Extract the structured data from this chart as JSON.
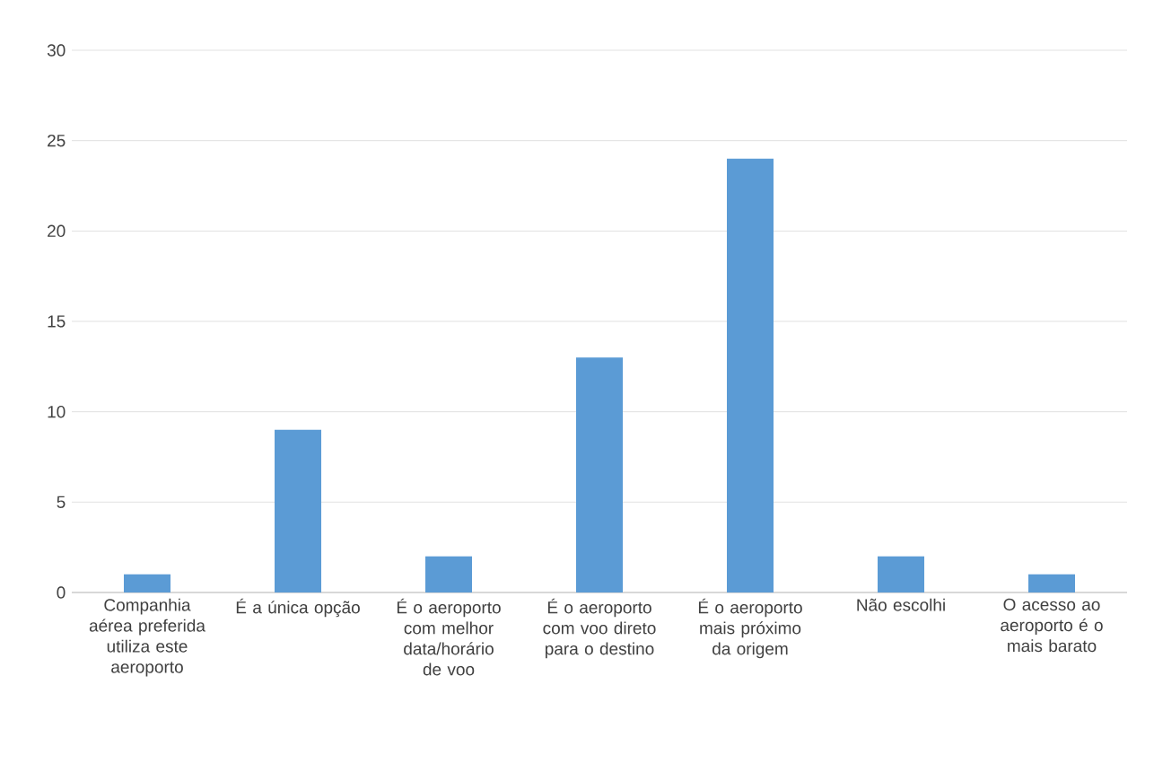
{
  "chart_data": {
    "type": "bar",
    "categories": [
      "Companhia aérea preferida utiliza este aeroporto",
      "É a única opção",
      "É o aeroporto com melhor data/horário de voo",
      "É o aeroporto com voo direto para o destino",
      "É o aeroporto mais próximo da origem",
      "Não escolhi",
      "O acesso ao aeroporto é o mais barato"
    ],
    "values": [
      1,
      9,
      2,
      13,
      24,
      2,
      1
    ],
    "color": "#5b9bd5",
    "ylim": [
      0,
      30
    ],
    "yticks": [
      0,
      5,
      10,
      15,
      20,
      25,
      30
    ],
    "grid": "y"
  }
}
